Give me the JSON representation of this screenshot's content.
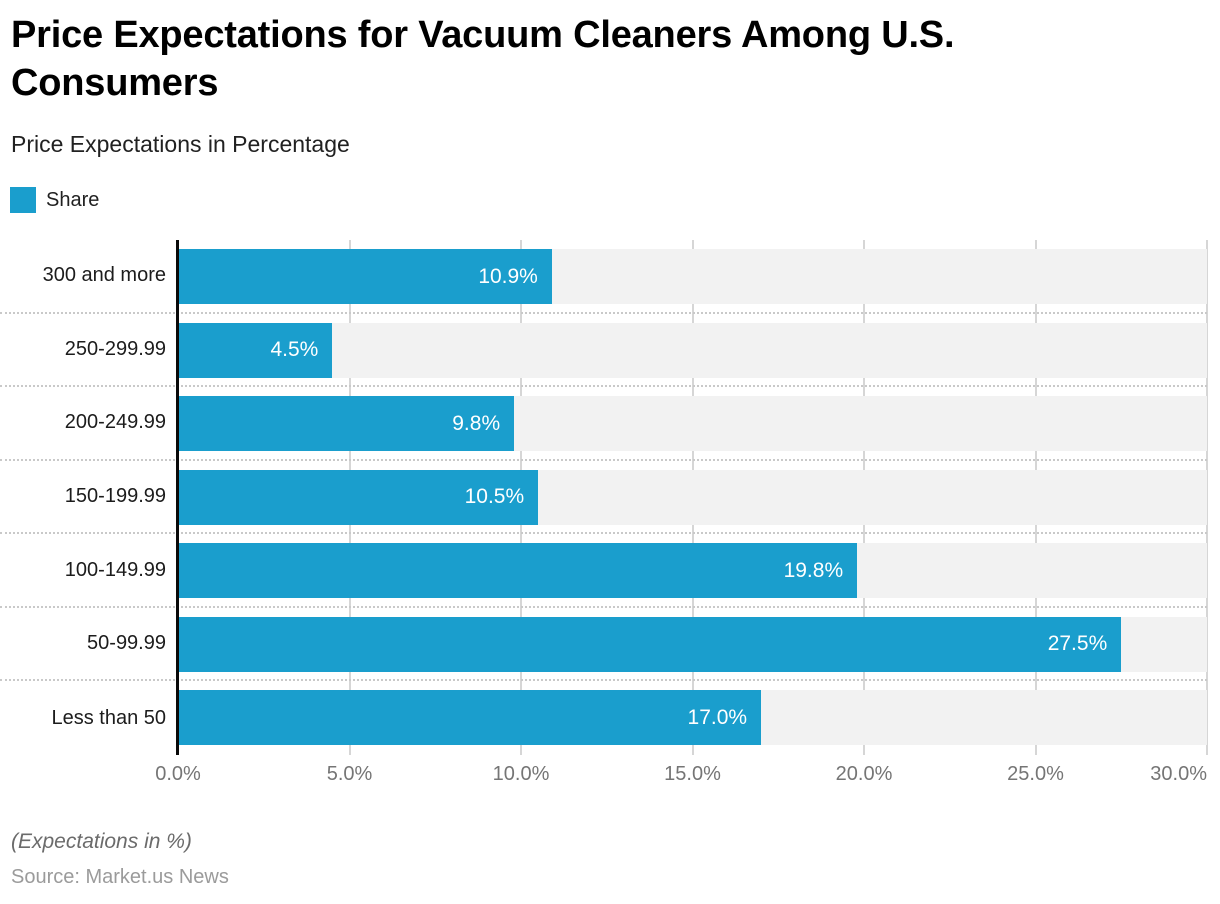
{
  "header": {
    "title": "Price Expectations for Vacuum Cleaners Among U.S. Consumers",
    "subtitle": "Price Expectations in Percentage"
  },
  "legend": {
    "series_label": "Share",
    "swatch_color": "#1A9ECD"
  },
  "chart_data": {
    "type": "bar",
    "orientation": "horizontal",
    "title": "Price Expectations for Vacuum Cleaners Among U.S. Consumers",
    "subtitle": "Price Expectations in Percentage",
    "categories": [
      "300 and more",
      "250-299.99",
      "200-249.99",
      "150-199.99",
      "100-149.99",
      "50-99.99",
      "Less than 50"
    ],
    "series": [
      {
        "name": "Share",
        "values": [
          10.9,
          4.5,
          9.8,
          10.5,
          19.8,
          27.5,
          17.0
        ]
      }
    ],
    "value_labels": [
      "10.9%",
      "4.5%",
      "9.8%",
      "10.5%",
      "19.8%",
      "27.5%",
      "17.0%"
    ],
    "x_tick_labels": [
      "0.0%",
      "5.0%",
      "10.0%",
      "15.0%",
      "20.0%",
      "25.0%",
      "30.0%"
    ],
    "xlim": [
      0,
      30
    ],
    "xlabel": "",
    "ylabel": "",
    "grid": true,
    "legend_position": "top-left",
    "bar_color": "#1A9ECD",
    "track_color": "#f2f2f2"
  },
  "footer": {
    "note": "(Expectations in %)",
    "source": "Source: Market.us News"
  }
}
